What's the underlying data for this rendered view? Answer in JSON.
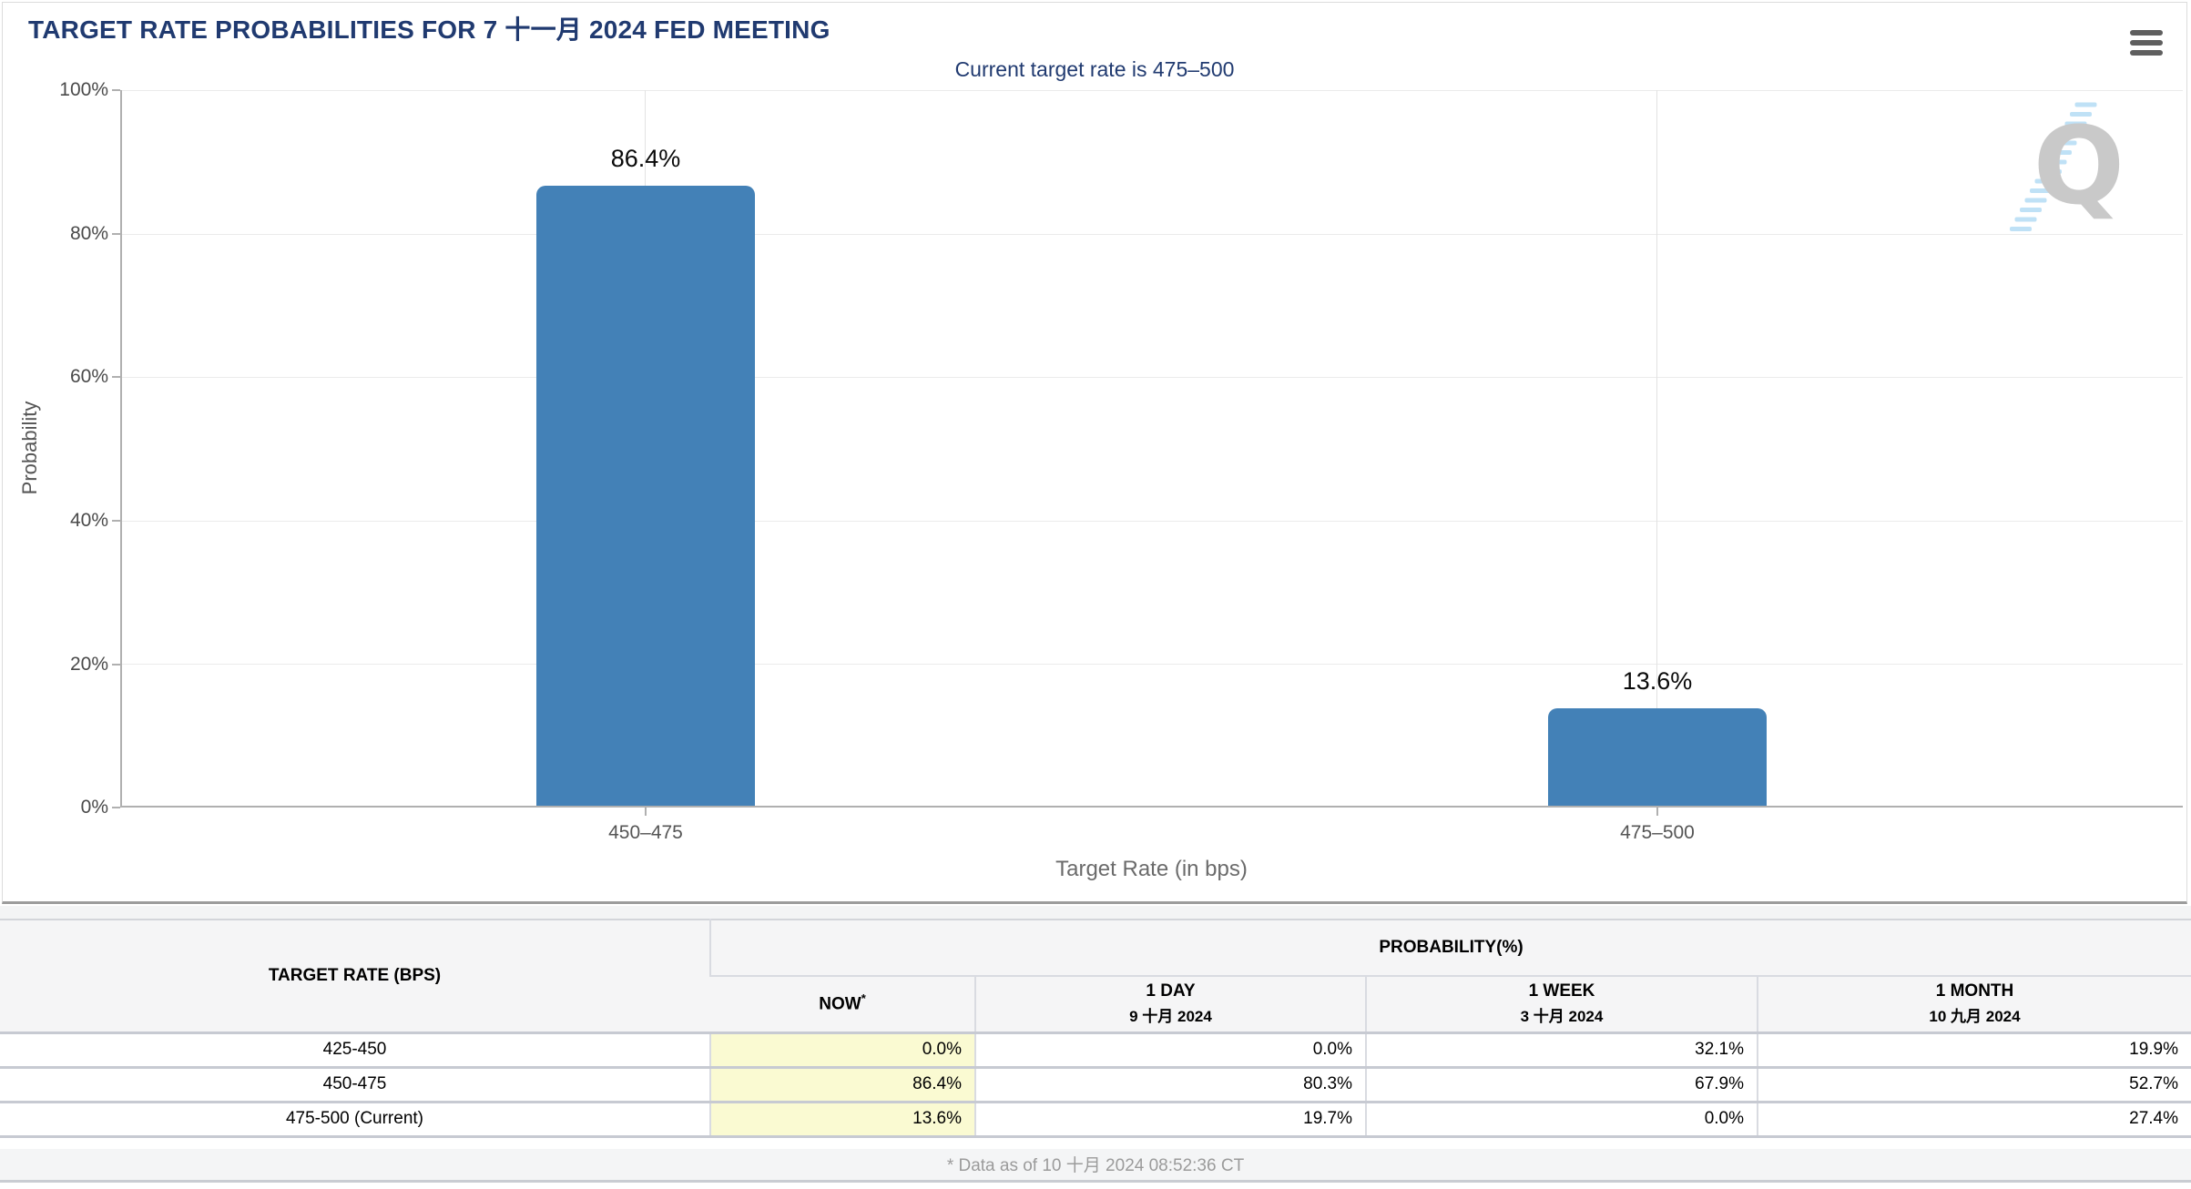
{
  "header": {
    "title": "TARGET RATE PROBABILITIES FOR 7 十一月 2024 FED MEETING",
    "menu_icon": "hamburger-menu-icon"
  },
  "chart_data": {
    "type": "bar",
    "subtitle": "Current target rate is 475–500",
    "categories": [
      "450–475",
      "475–500"
    ],
    "values": [
      86.4,
      13.6
    ],
    "data_labels": [
      "86.4%",
      "13.6%"
    ],
    "xlabel": "Target Rate (in bps)",
    "ylabel": "Probability",
    "ylim": [
      0,
      100
    ],
    "ytick_labels": [
      "100%",
      "80%",
      "60%",
      "40%",
      "20%",
      "0%"
    ],
    "grid": "horizontal 20% steps + vertical category lines",
    "legend": "none",
    "bar_color": "#4381b7"
  },
  "watermark": {
    "letter": "Q"
  },
  "table": {
    "col1_header": "TARGET RATE (BPS)",
    "group_header": "PROBABILITY(%)",
    "now_asterisk": "*",
    "columns": [
      {
        "label": "NOW",
        "date": ""
      },
      {
        "label": "1 DAY",
        "date": "9 十月 2024"
      },
      {
        "label": "1 WEEK",
        "date": "3 十月 2024"
      },
      {
        "label": "1 MONTH",
        "date": "10 九月 2024"
      }
    ],
    "rows": [
      {
        "rate": "425-450",
        "now": "0.0%",
        "day1": "0.0%",
        "week1": "32.1%",
        "month1": "19.9%"
      },
      {
        "rate": "450-475",
        "now": "86.4%",
        "day1": "80.3%",
        "week1": "67.9%",
        "month1": "52.7%"
      },
      {
        "rate": "475-500 (Current)",
        "now": "13.6%",
        "day1": "19.7%",
        "week1": "0.0%",
        "month1": "27.4%"
      }
    ]
  },
  "footer": {
    "note": "* Data as of 10 十月 2024 08:52:36 CT"
  }
}
